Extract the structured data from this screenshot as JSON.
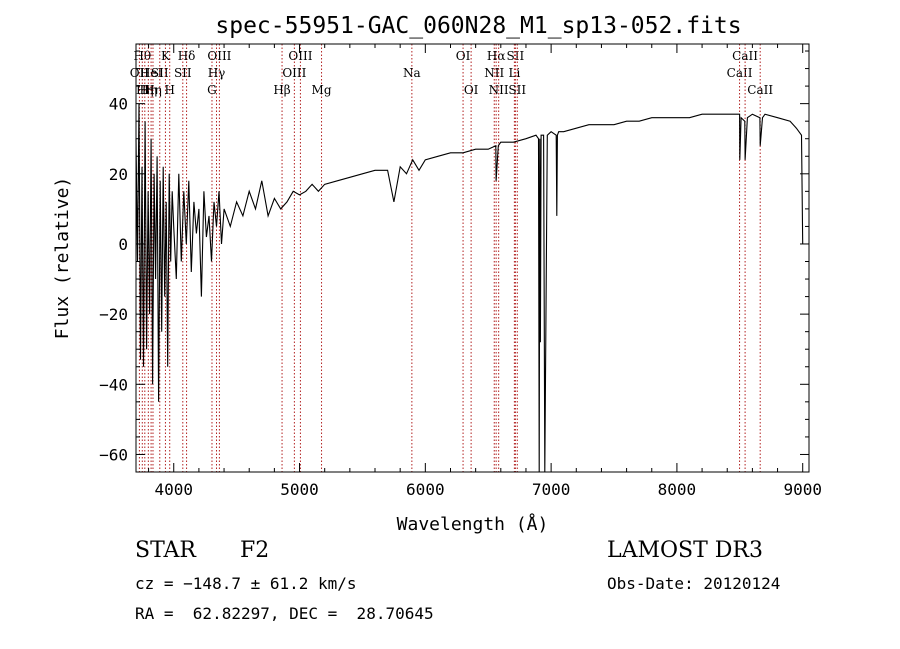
{
  "chart_data": {
    "type": "line",
    "title": "spec-55951-GAC_060N28_M1_sp13-052.fits",
    "xlabel": "Wavelength (Å)",
    "ylabel": "Flux (relative)",
    "xlim": [
      3700,
      9050
    ],
    "ylim": [
      -65,
      57
    ],
    "xticks": [
      4000,
      5000,
      6000,
      7000,
      8000,
      9000
    ],
    "yticks": [
      -60,
      -40,
      -20,
      0,
      20,
      40
    ],
    "xminor_step": 200,
    "yminor_step": 5,
    "series": [
      {
        "name": "flux",
        "x": [
          3700,
          3712,
          3724,
          3736,
          3748,
          3760,
          3772,
          3784,
          3796,
          3808,
          3820,
          3832,
          3844,
          3856,
          3868,
          3880,
          3892,
          3904,
          3916,
          3928,
          3940,
          3952,
          3964,
          3976,
          3988,
          4000,
          4020,
          4040,
          4060,
          4080,
          4100,
          4120,
          4140,
          4160,
          4180,
          4200,
          4220,
          4240,
          4260,
          4280,
          4300,
          4320,
          4340,
          4360,
          4380,
          4400,
          4450,
          4500,
          4550,
          4600,
          4650,
          4700,
          4750,
          4800,
          4850,
          4900,
          4950,
          5000,
          5050,
          5100,
          5150,
          5200,
          5300,
          5400,
          5500,
          5600,
          5700,
          5750,
          5800,
          5850,
          5900,
          5950,
          6000,
          6100,
          6200,
          6300,
          6400,
          6500,
          6560,
          6563,
          6580,
          6600,
          6700,
          6800,
          6880,
          6900,
          6905,
          6910,
          6915,
          6920,
          6940,
          6950,
          6970,
          7000,
          7040,
          7045,
          7050,
          7060,
          7100,
          7200,
          7300,
          7400,
          7500,
          7600,
          7700,
          7800,
          7900,
          8000,
          8100,
          8200,
          8300,
          8400,
          8450,
          8498,
          8500,
          8510,
          8540,
          8542,
          8560,
          8600,
          8660,
          8662,
          8680,
          8700,
          8800,
          8900,
          8950,
          8990,
          9000
        ],
        "y": [
          30,
          -5,
          40,
          -33,
          22,
          -35,
          35,
          -30,
          15,
          -20,
          30,
          -40,
          20,
          -10,
          25,
          -45,
          18,
          -25,
          22,
          -15,
          12,
          -35,
          20,
          -5,
          15,
          5,
          -10,
          20,
          -5,
          15,
          0,
          18,
          -8,
          12,
          3,
          10,
          -15,
          15,
          2,
          8,
          -5,
          12,
          5,
          15,
          0,
          10,
          5,
          12,
          8,
          15,
          10,
          18,
          8,
          13,
          10,
          12,
          15,
          14,
          15,
          17,
          15,
          17,
          18,
          19,
          20,
          21,
          21,
          12,
          22,
          20,
          24,
          21,
          24,
          25,
          26,
          26,
          27,
          27,
          28,
          18,
          28,
          29,
          29,
          30,
          31,
          30,
          -65,
          30,
          -28,
          31,
          31,
          -65,
          31,
          32,
          31,
          8,
          31,
          32,
          32,
          33,
          34,
          34,
          34,
          35,
          35,
          36,
          36,
          36,
          36,
          37,
          37,
          37,
          37,
          37,
          24,
          36,
          35,
          24,
          36,
          37,
          36,
          28,
          36,
          37,
          36,
          35,
          33,
          31,
          0
        ],
        "color": "#000000"
      }
    ],
    "lines": [
      {
        "wl": 3727,
        "label": "OII",
        "row": 1
      },
      {
        "wl": 3750,
        "label": "Hθ",
        "row": 0
      },
      {
        "wl": 3770,
        "label": "Hη",
        "row": 2
      },
      {
        "wl": 3798,
        "label": "Hη",
        "row": 2
      },
      {
        "wl": 3820,
        "label": "HeI",
        "row": 1
      },
      {
        "wl": 3835,
        "label": "Hη",
        "row": 2
      },
      {
        "wl": 3889,
        "label": "SII",
        "row": 1
      },
      {
        "wl": 3934,
        "label": "K",
        "row": 0
      },
      {
        "wl": 3968,
        "label": "H",
        "row": 2
      },
      {
        "wl": 4102,
        "label": "Hδ",
        "row": 0
      },
      {
        "wl": 4072,
        "label": "SII",
        "row": 1
      },
      {
        "wl": 4304,
        "label": "G",
        "row": 2
      },
      {
        "wl": 4340,
        "label": "Hγ",
        "row": 1
      },
      {
        "wl": 4363,
        "label": "OIII",
        "row": 0
      },
      {
        "wl": 4861,
        "label": "Hβ",
        "row": 2
      },
      {
        "wl": 4959,
        "label": "OIII",
        "row": 1
      },
      {
        "wl": 5007,
        "label": "OIII",
        "row": 0
      },
      {
        "wl": 5175,
        "label": "Mg",
        "row": 2
      },
      {
        "wl": 5893,
        "label": "Na",
        "row": 1
      },
      {
        "wl": 6300,
        "label": "OI",
        "row": 0
      },
      {
        "wl": 6364,
        "label": "OI",
        "row": 2
      },
      {
        "wl": 6548,
        "label": "NII",
        "row": 1
      },
      {
        "wl": 6563,
        "label": "Hα",
        "row": 0
      },
      {
        "wl": 6583,
        "label": "NII",
        "row": 2
      },
      {
        "wl": 6708,
        "label": "Li",
        "row": 1
      },
      {
        "wl": 6716,
        "label": "SII",
        "row": 0
      },
      {
        "wl": 6731,
        "label": "SII",
        "row": 2
      },
      {
        "wl": 8498,
        "label": "CaII",
        "row": 1
      },
      {
        "wl": 8542,
        "label": "CaII",
        "row": 0
      },
      {
        "wl": 8662,
        "label": "CaII",
        "row": 2
      }
    ],
    "line_color": "#b22222"
  },
  "info": {
    "object_type": "STAR",
    "subclass": "F2",
    "survey": "LAMOST DR3",
    "cz": "cz = −148.7 ± 61.2 km/s",
    "obs_date": "Obs-Date: 20120124",
    "coords": "RA =  62.82297, DEC =  28.70645"
  }
}
